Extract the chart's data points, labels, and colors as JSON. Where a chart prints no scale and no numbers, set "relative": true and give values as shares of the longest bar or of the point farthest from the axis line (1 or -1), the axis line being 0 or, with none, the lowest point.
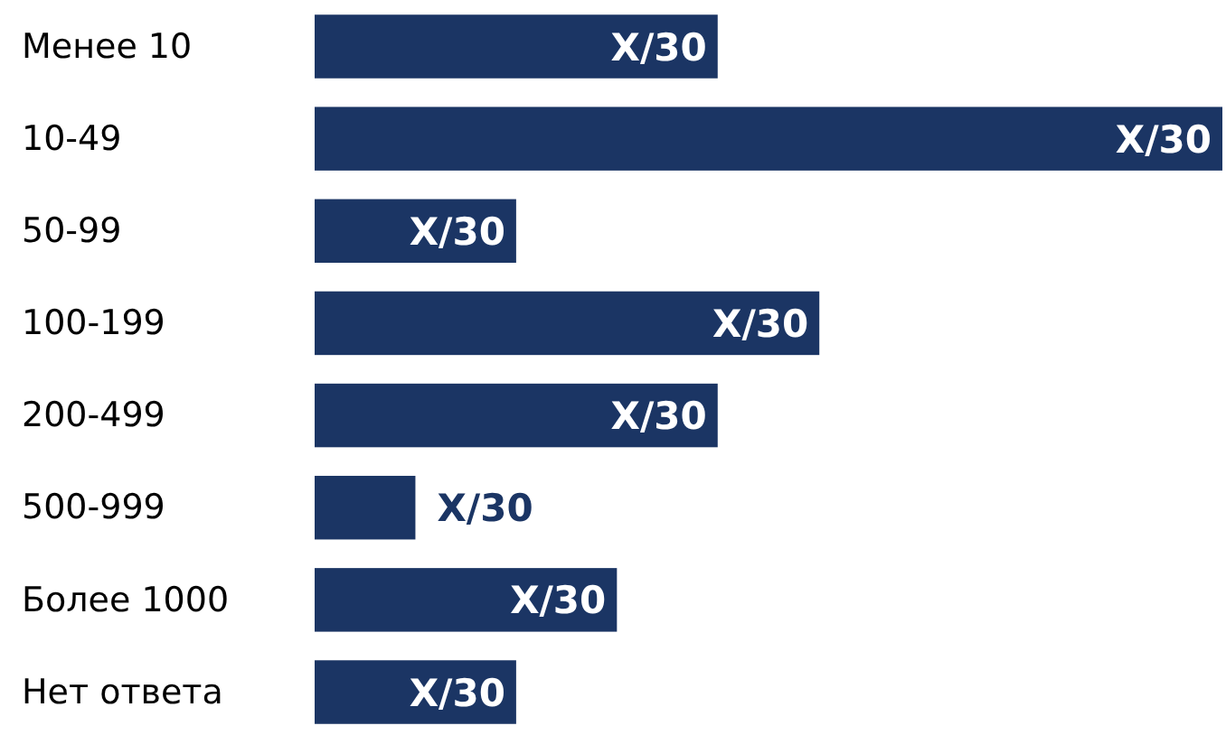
{
  "chart_data": {
    "type": "bar",
    "orientation": "horizontal",
    "relative": true,
    "categories": [
      "Менее 10",
      "10-49",
      "50-99",
      "100-199",
      "200-499",
      "500-999",
      "Более 1000",
      "Нет ответа"
    ],
    "values": [
      0.444,
      1,
      0.222,
      0.556,
      0.444,
      0.111,
      0.333,
      0.222
    ],
    "color": "#1b3564",
    "annotations": [
      {
        "text": "X/30",
        "x": 0.444,
        "y": "Менее 10"
      },
      {
        "text": "X/30",
        "x": 1,
        "y": "10-49"
      },
      {
        "text": "X/30",
        "x": 0.222,
        "y": "50-99"
      },
      {
        "text": "X/30",
        "x": 0.556,
        "y": "100-199"
      },
      {
        "text": "X/30",
        "x": 0.444,
        "y": "200-499"
      },
      {
        "text": "X/30",
        "x": 0.111,
        "y": "500-999"
      },
      {
        "text": "X/30",
        "x": 0.333,
        "y": "Более 1000"
      },
      {
        "text": "X/30",
        "x": 0.222,
        "y": "Нет ответа"
      }
    ]
  }
}
